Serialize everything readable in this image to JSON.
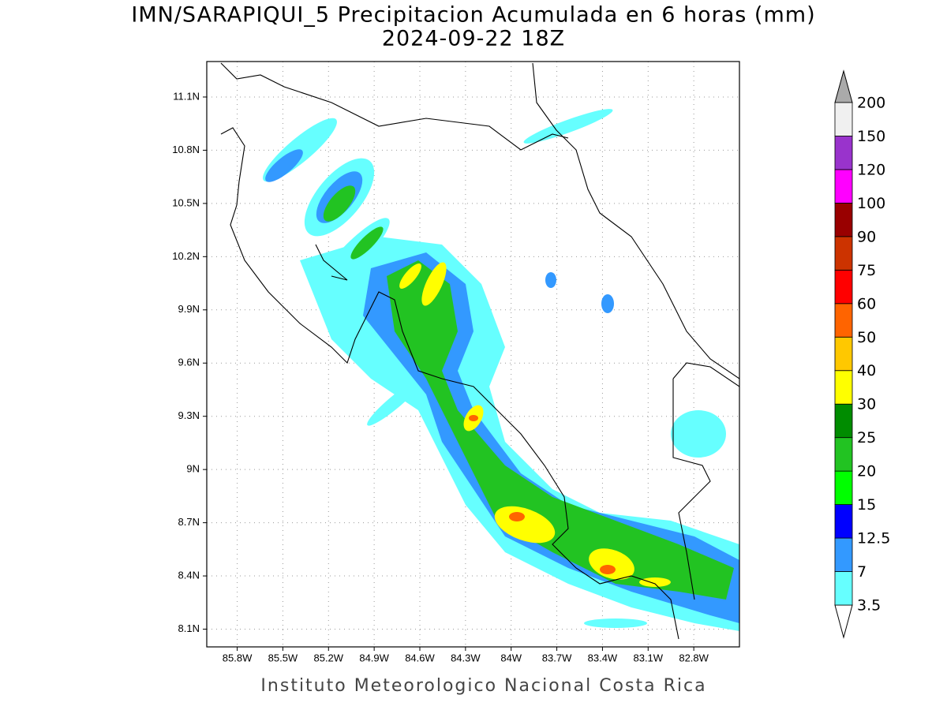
{
  "title": "IMN/SARAPIQUI_5 Precipitacion Acumulada en 6 horas (mm)",
  "subtitle": "2024-09-22 18Z",
  "footer": "Instituto Meteorologico Nacional Costa Rica",
  "map": {
    "xlim": [
      -86.0,
      -82.5
    ],
    "ylim": [
      8.0,
      11.3
    ],
    "xticks": [
      {
        "value": -85.8,
        "label": "85.8W"
      },
      {
        "value": -85.5,
        "label": "85.5W"
      },
      {
        "value": -85.2,
        "label": "85.2W"
      },
      {
        "value": -84.9,
        "label": "84.9W"
      },
      {
        "value": -84.6,
        "label": "84.6W"
      },
      {
        "value": -84.3,
        "label": "84.3W"
      },
      {
        "value": -84.0,
        "label": "84W"
      },
      {
        "value": -83.7,
        "label": "83.7W"
      },
      {
        "value": -83.4,
        "label": "83.4W"
      },
      {
        "value": -83.1,
        "label": "83.1W"
      },
      {
        "value": -82.8,
        "label": "82.8W"
      }
    ],
    "yticks": [
      {
        "value": 8.1,
        "label": "8.1N"
      },
      {
        "value": 8.4,
        "label": "8.4N"
      },
      {
        "value": 8.7,
        "label": "8.7N"
      },
      {
        "value": 9.0,
        "label": "9N"
      },
      {
        "value": 9.3,
        "label": "9.3N"
      },
      {
        "value": 9.6,
        "label": "9.6N"
      },
      {
        "value": 9.9,
        "label": "9.9N"
      },
      {
        "value": 10.2,
        "label": "10.2N"
      },
      {
        "value": 10.5,
        "label": "10.5N"
      },
      {
        "value": 10.8,
        "label": "10.8N"
      },
      {
        "value": 11.1,
        "label": "11.1N"
      }
    ],
    "grid": true
  },
  "colorbar": {
    "levels": [
      3.5,
      7,
      12.5,
      15,
      20,
      25,
      30,
      40,
      50,
      60,
      75,
      90,
      100,
      120,
      150,
      200
    ],
    "colors": [
      "#66ffff",
      "#3399ff",
      "#0000ff",
      "#00ff00",
      "#22c322",
      "#008c00",
      "#ffff00",
      "#ffc800",
      "#ff6400",
      "#ff0000",
      "#cc3300",
      "#990000",
      "#ff00ff",
      "#9933cc",
      "#f0f0f0"
    ]
  }
}
